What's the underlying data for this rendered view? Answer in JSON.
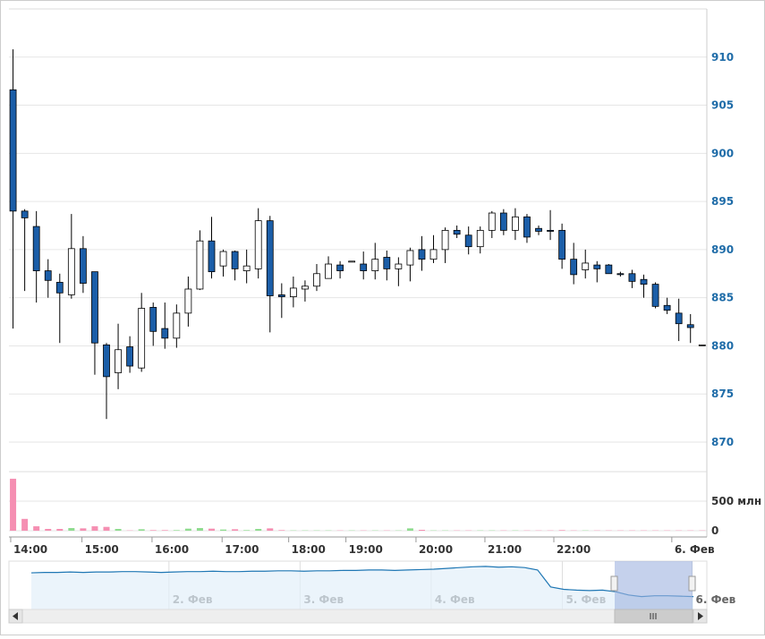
{
  "chart_data": {
    "type": "candlestick",
    "up_color": "#ffffff",
    "down_color": "#1b5ea8",
    "wick_color": "#000000",
    "open": [
      906.6,
      894,
      892.4,
      887.8,
      886.6,
      885.3,
      890.1,
      887.7,
      880.1,
      877.2,
      879.9,
      877.7,
      884,
      881.8,
      880.8,
      883.4,
      885.9,
      890.9,
      888.3,
      889.8,
      887.8,
      888,
      893,
      885.3,
      885.1,
      885.9,
      886.2,
      887,
      888.4,
      888.7,
      888.5,
      887.8,
      889.2,
      888,
      888.4,
      890,
      889,
      890,
      892,
      891.5,
      890.3,
      892,
      893.8,
      892,
      893.4,
      892.2,
      892,
      892,
      889,
      887.9,
      888.4,
      888.4,
      887.5,
      887.5,
      886.9,
      886.4,
      884.2,
      883.4,
      882.2,
      880.1
    ],
    "high": [
      910.8,
      894.2,
      894,
      889,
      887.5,
      893.7,
      891.4,
      887.7,
      880.3,
      882.3,
      881,
      885.5,
      884.5,
      884.5,
      884.3,
      887.2,
      892,
      893.4,
      890,
      889.9,
      890,
      894.3,
      893.5,
      886.5,
      887.2,
      886.8,
      888.5,
      889.3,
      888.8,
      888.8,
      889.8,
      890.7,
      889.9,
      889.2,
      890.2,
      891.4,
      891.5,
      892.3,
      892.5,
      892.4,
      892.4,
      894,
      894.2,
      894.3,
      893.7,
      892.5,
      894.1,
      892.7,
      890.7,
      890,
      888.8,
      888.5,
      887.7,
      887.9,
      887.4,
      886.6,
      885,
      884.9,
      883.3,
      880.1
    ],
    "low": [
      881.8,
      885.7,
      884.5,
      885,
      880.3,
      884.9,
      885.5,
      877,
      872.4,
      875.5,
      877.2,
      877.3,
      880,
      879.7,
      879.8,
      882,
      885.8,
      887,
      887.2,
      886.8,
      886.5,
      887,
      881.4,
      882.9,
      884,
      884.6,
      885.7,
      887,
      887,
      888.7,
      886.9,
      886.9,
      886.8,
      886.2,
      886.7,
      887.8,
      888.6,
      888.6,
      891.2,
      889.5,
      889.6,
      891.2,
      891.5,
      891,
      890.7,
      891.5,
      891,
      888,
      886.4,
      887,
      886.6,
      887.5,
      887.2,
      886,
      885,
      883.9,
      883.3,
      880.5,
      880.3,
      880.1
    ],
    "close": [
      894,
      893.3,
      887.8,
      886.8,
      885.5,
      890.1,
      886.5,
      880.3,
      876.8,
      879.6,
      877.9,
      883.9,
      881.5,
      880.8,
      883.4,
      885.9,
      890.9,
      887.7,
      889.8,
      888,
      888.3,
      893,
      885.2,
      885.1,
      886,
      886.2,
      887.5,
      888.5,
      887.8,
      888.8,
      887.8,
      889,
      888,
      888.5,
      889.9,
      889,
      890,
      892,
      891.6,
      890.3,
      892,
      893.8,
      892,
      893.4,
      891.3,
      891.9,
      891.9,
      889,
      887.4,
      888.6,
      888,
      887.5,
      887.4,
      886.7,
      886.4,
      884.1,
      883.7,
      882.3,
      881.9,
      880.1
    ],
    "volume": [
      880,
      200,
      75,
      30,
      30,
      45,
      40,
      75,
      65,
      30,
      5,
      25,
      10,
      10,
      10,
      35,
      45,
      35,
      20,
      25,
      10,
      30,
      40,
      10,
      5,
      5,
      5,
      5,
      5,
      5,
      5,
      5,
      5,
      5,
      40,
      15,
      5,
      5,
      5,
      5,
      5,
      5,
      5,
      5,
      5,
      5,
      5,
      10,
      5,
      5,
      5,
      5,
      5,
      5,
      5,
      5,
      5,
      5,
      5,
      5
    ],
    "ylim": [
      870,
      915
    ],
    "yticks": [
      870,
      875,
      880,
      885,
      890,
      895,
      900,
      905,
      910
    ],
    "volume_ylim": [
      0,
      1000
    ],
    "volume_yticks": [
      0,
      {
        "value": 500,
        "label": "500 млн"
      }
    ],
    "xlim": [
      -0.35,
      59.4
    ],
    "xticks": [
      {
        "value": -0.2,
        "label": "14:00"
      },
      {
        "value": 5.9,
        "label": "15:00"
      },
      {
        "value": 11.9,
        "label": "16:00"
      },
      {
        "value": 17.9,
        "label": "17:00"
      },
      {
        "value": 23.6,
        "label": "18:00"
      },
      {
        "value": 28.5,
        "label": "19:00"
      },
      {
        "value": 34.5,
        "label": "20:00"
      },
      {
        "value": 40.4,
        "label": "21:00"
      },
      {
        "value": 46.3,
        "label": "22:00"
      },
      {
        "value": 56.4,
        "label": "6. Фев"
      }
    ],
    "navigator": {
      "color": "#1f77b4",
      "ylim": [
        860,
        920
      ],
      "xlim": [
        0,
        51
      ],
      "values": [
        905.5,
        906,
        906,
        906.5,
        906,
        906.5,
        906.5,
        907,
        907,
        906.5,
        906,
        906.5,
        907,
        907,
        907.5,
        907,
        907,
        907.5,
        907.5,
        908,
        908,
        907.5,
        908,
        908,
        908.5,
        908.5,
        909,
        909,
        908.5,
        909,
        909.5,
        910,
        911,
        912,
        913,
        913.5,
        912.5,
        913,
        912,
        909,
        888,
        885,
        884,
        883.5,
        884,
        882,
        878,
        876,
        877,
        877,
        876.5,
        876
      ],
      "xticks": [
        {
          "value": 10.6,
          "label": "2. Фев"
        },
        {
          "value": 20.7,
          "label": "3. Фев"
        },
        {
          "value": 30.8,
          "label": "4. Фев"
        },
        {
          "value": 40.9,
          "label": "5. Фев"
        },
        {
          "value": 50.9,
          "label": "6. Фев"
        }
      ]
    }
  }
}
